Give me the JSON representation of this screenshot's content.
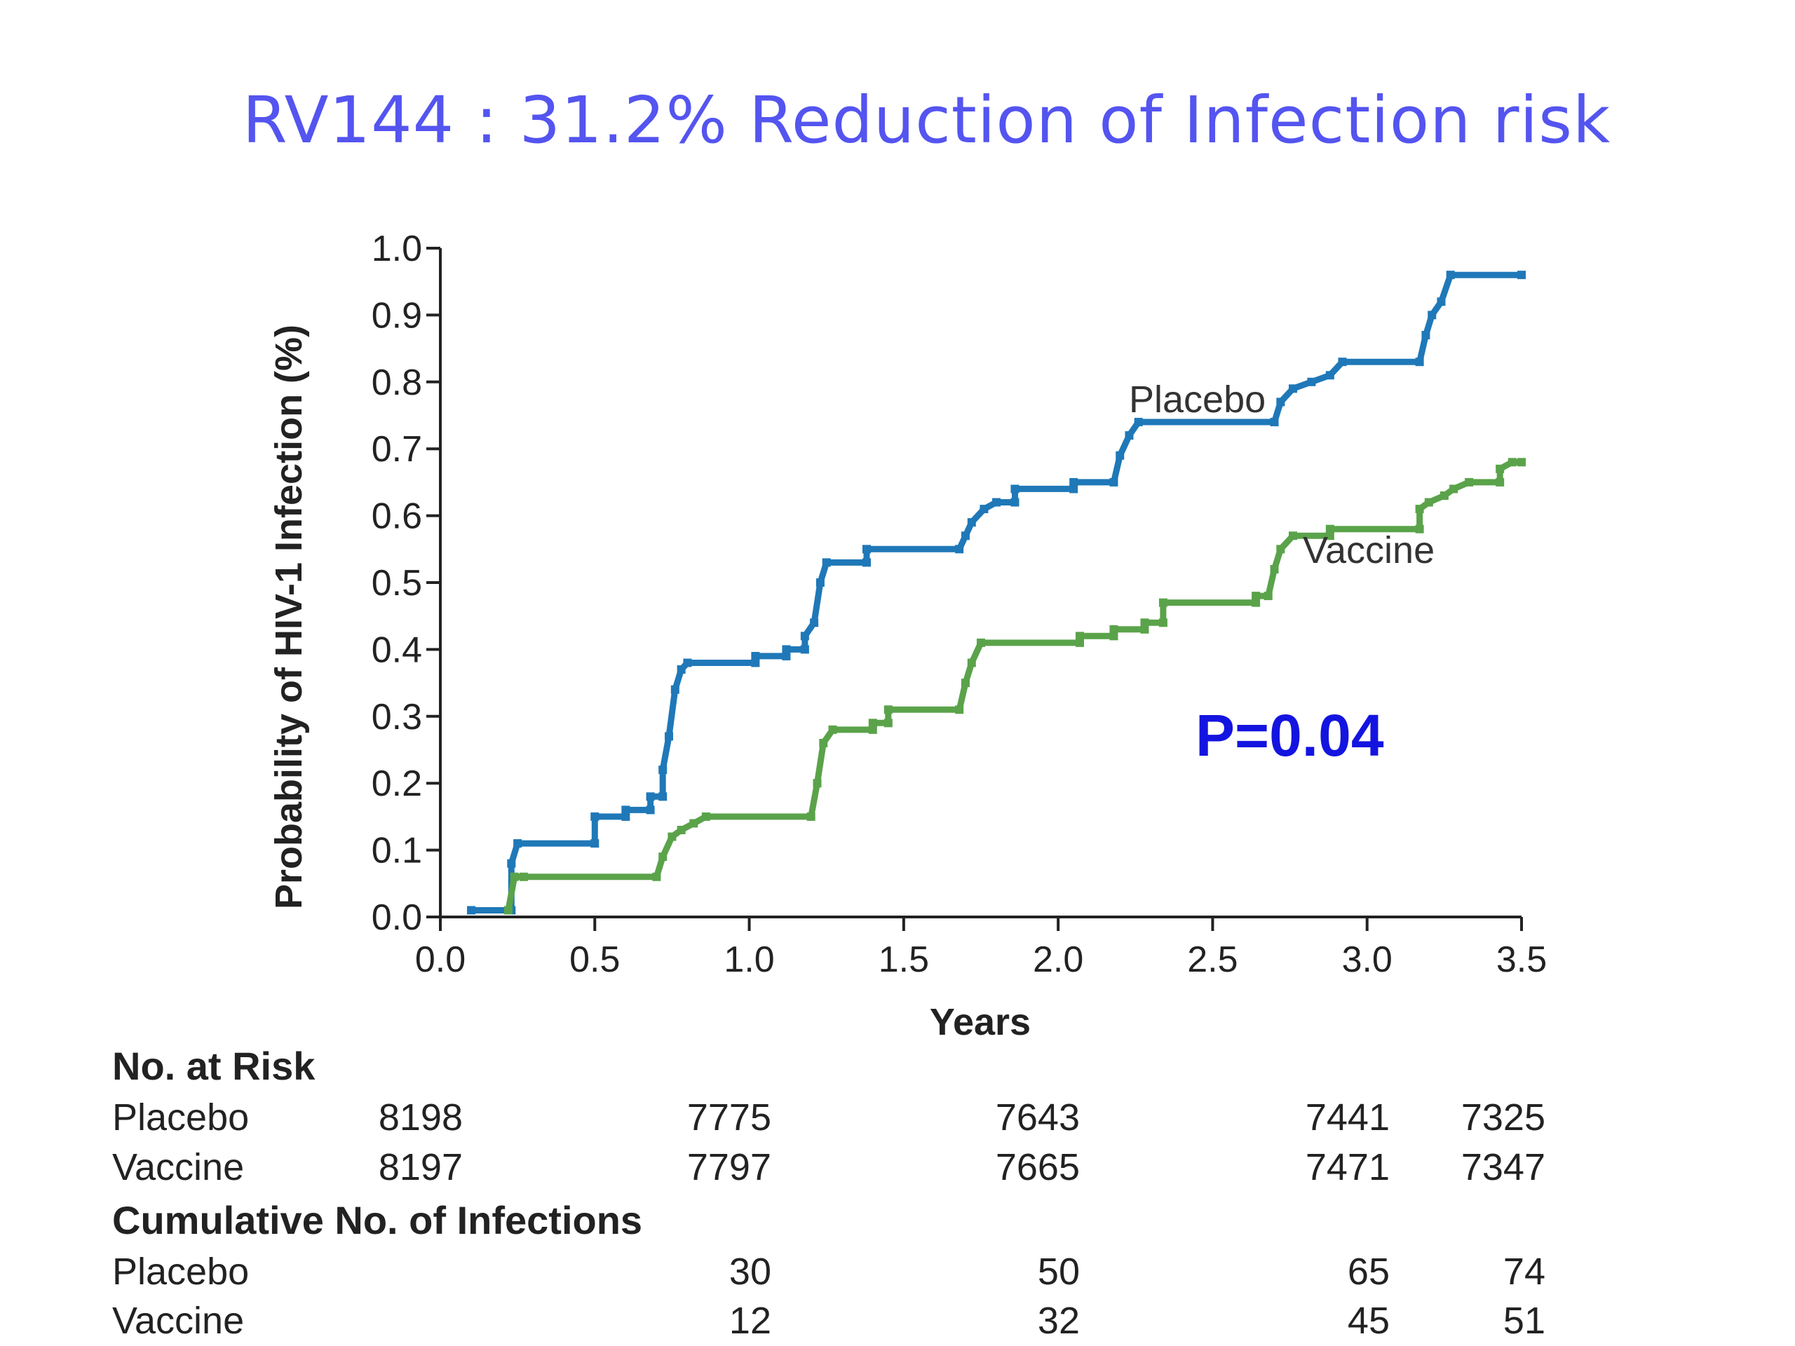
{
  "title": "RV144 : 31.2% Reduction of Infection risk",
  "p_value": "P=0.04",
  "colors": {
    "title": "#5454f0",
    "placebo": "#1f78b8",
    "vaccine": "#5aa34a",
    "p_value": "#1414e0"
  },
  "chart_data": {
    "type": "line",
    "step": true,
    "xlabel": "Years",
    "ylabel": "Probability of HIV-1 Infection (%)",
    "xlim": [
      0.0,
      3.5
    ],
    "ylim": [
      0.0,
      1.0
    ],
    "x_ticks": [
      "0.0",
      "0.5",
      "1.0",
      "1.5",
      "2.0",
      "2.5",
      "3.0",
      "3.5"
    ],
    "y_ticks": [
      "0.0",
      "0.1",
      "0.2",
      "0.3",
      "0.4",
      "0.5",
      "0.6",
      "0.7",
      "0.8",
      "0.9",
      "1.0"
    ],
    "grid": false,
    "legend": "inline labels",
    "series": [
      {
        "name": "Placebo",
        "points": [
          [
            0.1,
            0.01
          ],
          [
            0.23,
            0.01
          ],
          [
            0.23,
            0.08
          ],
          [
            0.25,
            0.11
          ],
          [
            0.5,
            0.11
          ],
          [
            0.5,
            0.15
          ],
          [
            0.6,
            0.15
          ],
          [
            0.6,
            0.16
          ],
          [
            0.68,
            0.16
          ],
          [
            0.68,
            0.18
          ],
          [
            0.72,
            0.18
          ],
          [
            0.72,
            0.22
          ],
          [
            0.74,
            0.27
          ],
          [
            0.76,
            0.34
          ],
          [
            0.78,
            0.37
          ],
          [
            0.8,
            0.38
          ],
          [
            1.02,
            0.38
          ],
          [
            1.02,
            0.39
          ],
          [
            1.12,
            0.39
          ],
          [
            1.12,
            0.4
          ],
          [
            1.18,
            0.4
          ],
          [
            1.18,
            0.42
          ],
          [
            1.21,
            0.44
          ],
          [
            1.23,
            0.5
          ],
          [
            1.25,
            0.53
          ],
          [
            1.38,
            0.53
          ],
          [
            1.38,
            0.55
          ],
          [
            1.68,
            0.55
          ],
          [
            1.7,
            0.57
          ],
          [
            1.72,
            0.59
          ],
          [
            1.76,
            0.61
          ],
          [
            1.8,
            0.62
          ],
          [
            1.86,
            0.62
          ],
          [
            1.86,
            0.64
          ],
          [
            2.05,
            0.64
          ],
          [
            2.05,
            0.65
          ],
          [
            2.18,
            0.65
          ],
          [
            2.2,
            0.69
          ],
          [
            2.23,
            0.72
          ],
          [
            2.26,
            0.74
          ],
          [
            2.7,
            0.74
          ],
          [
            2.72,
            0.77
          ],
          [
            2.76,
            0.79
          ],
          [
            2.82,
            0.8
          ],
          [
            2.88,
            0.81
          ],
          [
            2.92,
            0.83
          ],
          [
            3.17,
            0.83
          ],
          [
            3.19,
            0.87
          ],
          [
            3.21,
            0.9
          ],
          [
            3.24,
            0.92
          ],
          [
            3.27,
            0.96
          ],
          [
            3.5,
            0.96
          ]
        ]
      },
      {
        "name": "Vaccine",
        "points": [
          [
            0.22,
            0.01
          ],
          [
            0.24,
            0.06
          ],
          [
            0.27,
            0.06
          ],
          [
            0.7,
            0.06
          ],
          [
            0.72,
            0.09
          ],
          [
            0.75,
            0.12
          ],
          [
            0.78,
            0.13
          ],
          [
            0.82,
            0.14
          ],
          [
            0.86,
            0.15
          ],
          [
            1.2,
            0.15
          ],
          [
            1.22,
            0.2
          ],
          [
            1.24,
            0.26
          ],
          [
            1.27,
            0.28
          ],
          [
            1.4,
            0.28
          ],
          [
            1.4,
            0.29
          ],
          [
            1.45,
            0.29
          ],
          [
            1.45,
            0.31
          ],
          [
            1.68,
            0.31
          ],
          [
            1.7,
            0.35
          ],
          [
            1.72,
            0.38
          ],
          [
            1.75,
            0.41
          ],
          [
            2.07,
            0.41
          ],
          [
            2.07,
            0.42
          ],
          [
            2.18,
            0.42
          ],
          [
            2.18,
            0.43
          ],
          [
            2.28,
            0.43
          ],
          [
            2.28,
            0.44
          ],
          [
            2.34,
            0.44
          ],
          [
            2.34,
            0.47
          ],
          [
            2.64,
            0.47
          ],
          [
            2.64,
            0.48
          ],
          [
            2.68,
            0.48
          ],
          [
            2.7,
            0.52
          ],
          [
            2.72,
            0.55
          ],
          [
            2.76,
            0.57
          ],
          [
            2.88,
            0.57
          ],
          [
            2.88,
            0.58
          ],
          [
            3.17,
            0.58
          ],
          [
            3.17,
            0.61
          ],
          [
            3.2,
            0.62
          ],
          [
            3.25,
            0.63
          ],
          [
            3.28,
            0.64
          ],
          [
            3.33,
            0.65
          ],
          [
            3.43,
            0.65
          ],
          [
            3.43,
            0.67
          ],
          [
            3.47,
            0.68
          ],
          [
            3.5,
            0.68
          ]
        ]
      }
    ]
  },
  "risk_table": {
    "at_risk_heading": "No. at Risk",
    "infections_heading": "Cumulative No. of Infections",
    "at_risk": [
      {
        "label": "Placebo",
        "values": [
          "8198",
          "7775",
          "7643",
          "7441",
          "7325"
        ]
      },
      {
        "label": "Vaccine",
        "values": [
          "8197",
          "7797",
          "7665",
          "7471",
          "7347"
        ]
      }
    ],
    "infections": [
      {
        "label": "Placebo",
        "values": [
          "",
          "30",
          "50",
          "65",
          "74"
        ]
      },
      {
        "label": "Vaccine",
        "values": [
          "",
          "12",
          "32",
          "45",
          "51"
        ]
      }
    ]
  }
}
